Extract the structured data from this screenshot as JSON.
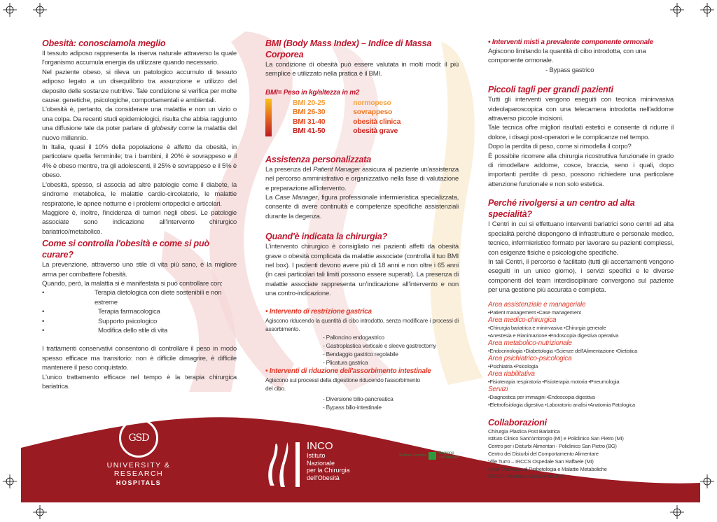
{
  "colors": {
    "accent": "#c0172d",
    "band": "#9b1b22",
    "subhead": "#e03a2a"
  },
  "col1": {
    "h1": "Obesità: conosciamola meglio",
    "p1": "Il tessuto adiposo rappresenta la riserva naturale attraverso la quale l'organismo accumula energia da utilizzare quando necessario.",
    "p2": "Nel paziente obeso, si rileva un patologico accumulo di tessuto adiposo legato a un disequilibrio tra assunzione e utilizzo del deposito delle sostanze nutritive. Tale condizione si verifica per molte cause: genetiche, psicologiche, comportamentali e ambientali.",
    "p3a": "L'obesità è, pertanto, da considerare una malattia e non un vizio o una colpa. Da recenti studi epidemiologici, risulta che abbia raggiunto una diffusione tale da poter parlare di ",
    "p3i": "globesity",
    "p3b": " come la malattia del nuovo millennio.",
    "p4": "In Italia, quasi il 10% della popolazione è affetto da obesità, in particolare quella femminile; tra i bambini, il 20% è sovrappeso e il 4% è obeso mentre, tra gli adolescenti, il 25% è sovrappeso e il 5% è obeso.",
    "p5": "L'obesità, spesso, si associa ad altre patologie come il diabete, la sindrome metabolica, le malattie cardio-circolatorie, le malattie respiratorie, le apnee notturne e i problemi ortopedici e articolari.",
    "p6": "Maggiore è, inoltre, l'incidenza di tumori negli obesi. Le patologie associate sono indicazione all'intervento chirurgico bariatrico/metabolico.",
    "h2": "Come si controlla l'obesità e come si può curare?",
    "p7": "La prevenzione, attraverso uno stile di vita più sano, è la migliore arma per combattere l'obesità.",
    "p8": "Quando, però, la malattia si è manifestata si può controllare con:",
    "bullets": [
      "Terapia dietologica con diete sostenibili e non estreme",
      "Terapia farmacologica",
      "Supporto psicologico",
      "Modifica dello stile di vita"
    ],
    "p9": "I trattamenti conservativi consentono di controllare il peso in modo spesso efficace ma transitorio: non è difficile dimagrire, è difficile mantenere il peso conquistato.",
    "p10": "L'unico trattamento efficace nel tempo è la terapia chirurgica bariatrica."
  },
  "col2": {
    "h1": "BMI (Body Mass Index) – Indice di Massa Corporea",
    "p1": "La condizione di obesità può essere valutata in molti modi: il più semplice e utilizzato nella pratica è il BMI.",
    "formula": "BMI= Peso in kg/altezza in m2",
    "bmi": [
      {
        "range": "BMI 20-25",
        "label": "normopeso",
        "color": "#f4a340"
      },
      {
        "range": "BMI 26-30",
        "label": "sovrappeso",
        "color": "#ec7b25"
      },
      {
        "range": "BMI 31-40",
        "label": "obesità clinica",
        "color": "#e04a22"
      },
      {
        "range": "BMI 41-50",
        "label": "obesità grave",
        "color": "#c9231f"
      }
    ],
    "h2": "Assistenza personalizzata",
    "p2a": "La presenza del ",
    "p2i": "Patient Manager",
    "p2b": " assicura al paziente un'assistenza nel percorso amministrativo e organizzativo nella fase di valutazione e preparazione all'intervento.",
    "p3a": "La ",
    "p3i": "Case Manager",
    "p3b": ", figura professionale infermieristica specializzata, consente di avere continuità e competenze specifiche assistenziali durante la degenza.",
    "h3": "Quand'è indicata la chirurgia?",
    "p4": "L'intervento chirurgico è consigliato nei pazienti affetti da obesità grave o obesità complicata da malattie associate (controlla il tuo BMI nel box). I pazienti devono avere più di 18 anni e non oltre i 65 anni (in casi particolari tali limiti possono essere superati). La presenza di malattie associate rappresenta un'indicazione all'intervento e non una contro-indicazione.",
    "s1": "• Intervento di restrizione gastrica",
    "s1p": "Agiscono riducendo la quantità di cibo introdotto, senza modificare i processi di assorbimento.",
    "s1list": [
      "- Palloncino endogastrico",
      "- Gastroplastica verticale e sleeve gastrectomy",
      "- Bendaggio gastrico regolabile",
      "- Plicatura gastrica"
    ],
    "s2": "• Interventi di riduzione dell'assorbimento intestinale",
    "s2p": "Agiscono sui processi della digestione riducendo l'assorbimento del cibo.",
    "s2list": [
      "- Diversione bilio-pancreatica",
      "- Bypass bilio-intestinale"
    ]
  },
  "col3": {
    "s3": "• Interventi misti a prevalente componente ormonale",
    "s3p": "Agiscono limitando la quantità di cibo introdotta, con una componente ormonale.",
    "s3list": [
      "- Bypass gastrico"
    ],
    "h1": "Piccoli tagli per grandi pazienti",
    "p1": "Tutti gli interventi vengono eseguiti con tecnica mininvasiva videolaparoscopica con una telecamera introdotta nell'addome attraverso piccole incisioni.",
    "p2": "Tale tecnica offre migliori risultati estetici e consente di ridurre il dolore, i disagi post-operatori e le complicanze nel tempo.",
    "p3": "Dopo la perdita di peso, come si rimodella il corpo?",
    "p4": "È possibile ricorrere alla chirurgia ricostruttiva funzionale in grado di rimodellare addome, cosce, braccia, seno i quali, dopo importanti perdite di peso, possono richiedere una particolare attenzione funzionale e non solo estetica.",
    "h2": "Perché rivolgersi a un centro ad alta specialità?",
    "p5": "I Centri in cui si effettuano interventi bariatrici sono centri ad alta specialità perché dispongono di infrastrutture e personale medico, tecnico, infermieristico formato per lavorare su pazienti complessi, con esigenze fisiche e psicologiche specifiche.",
    "p6": "In tali Centri, il percorso è facilitato (tutti gli accertamenti vengono eseguiti in un unico giorno), i servizi specifici e le diverse componenti del team interdisciplinare convergono sul paziente per una gestione più accurata e completa.",
    "areas": [
      {
        "title": "Area assistenziale e manageriale",
        "lines": [
          "•Patient management •Case management"
        ]
      },
      {
        "title": "Area medico-chirurgica",
        "lines": [
          "•Chirurgia bariatrica e mininvasiva •Chirurgia generale",
          "•Anestesia e Rianimazione •Endoscopia digestiva operativa"
        ]
      },
      {
        "title": "Area metabolico-nutrizionale",
        "lines": [
          "•Endocrinologia •Diabetologia •Scienze dell'Alimentazione •Dietistica"
        ]
      },
      {
        "title": "Area psichiatrico-psicologica",
        "lines": [
          "•Psichiatria •Psicologia"
        ]
      },
      {
        "title": "Area riabilitativa",
        "lines": [
          "•Fisioterapia respiratoria •Fisioterapia motoria •Pneumologia"
        ]
      },
      {
        "title": "Servizi",
        "lines": [
          "•Diagnostica per immagini •Endoscopia digestiva",
          "•Elettrofisiologia digestiva •Laboratorio analisi •Anatomia Patologica"
        ]
      }
    ],
    "h3": "Collaborazioni",
    "collab": [
      "Chirurgia Plastica Post Bariatrica",
      "Istituto Clinico Sant'Ambrogio (MI) e Policlinico San Pietro (MI)",
      "Centro per i Disturbi Alimentari - Policlinico San Pietro (BG)",
      "Centro dei Disturbi del Comportamento Alimentare",
      "Ville Turro – IRCCS Ospedale San Raffaele (MI)",
      "Unità Operativa di Diabetologia e Malattie Metaboliche",
      "IRCCS Policlinico San Donato (MI)"
    ]
  },
  "footer": {
    "gsd_monogram": "GSD",
    "gsd_line1": "UNIVERSITY & RESEARCH",
    "gsd_line2": "HOSPITALS",
    "inco_title": "INCO",
    "inco_lines": [
      "Istituto",
      "Nazionale",
      "per la Chirurgia",
      "dell'Obesità"
    ],
    "regione_small": "Sistema Sanitario",
    "regione": [
      "Regione",
      "Lombardia"
    ]
  }
}
